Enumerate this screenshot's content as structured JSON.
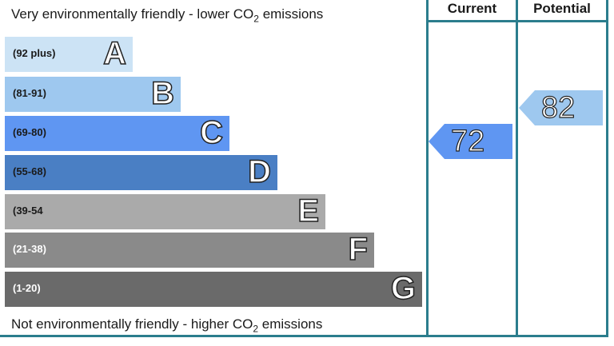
{
  "header": {
    "top_text_before": "Very environmentally friendly - lower CO",
    "top_text_sub": "2",
    "top_text_after": " emissions",
    "bottom_text_before": "Not environmentally friendly - higher CO",
    "bottom_text_sub": "2",
    "bottom_text_after": " emissions",
    "current_label": "Current",
    "potential_label": "Potential"
  },
  "chart_data": {
    "type": "bar",
    "categories": [
      "A",
      "B",
      "C",
      "D",
      "E",
      "F",
      "G"
    ],
    "bands": [
      {
        "letter": "A",
        "range": "(92 plus)",
        "color": "#cce3f5",
        "text_color": "#1a1a1a"
      },
      {
        "letter": "B",
        "range": "(81-91)",
        "color": "#9ec8ef",
        "text_color": "#1a1a1a"
      },
      {
        "letter": "C",
        "range": "(69-80)",
        "color": "#5f96f2",
        "text_color": "#1a1a1a"
      },
      {
        "letter": "D",
        "range": "(55-68)",
        "color": "#4a7fc4",
        "text_color": "#1a1a1a"
      },
      {
        "letter": "E",
        "range": "(39-54",
        "color": "#aaaaaa",
        "text_color": "#1a1a1a"
      },
      {
        "letter": "F",
        "range": "(21-38)",
        "color": "#8a8a8a",
        "text_color": "#ffffff"
      },
      {
        "letter": "G",
        "range": "(1-20)",
        "color": "#6a6a6a",
        "text_color": "#ffffff"
      }
    ],
    "current": {
      "value": 72,
      "band": "C",
      "color": "#5f96f2"
    },
    "potential": {
      "value": 82,
      "band": "B",
      "color": "#9ec8ef"
    }
  }
}
